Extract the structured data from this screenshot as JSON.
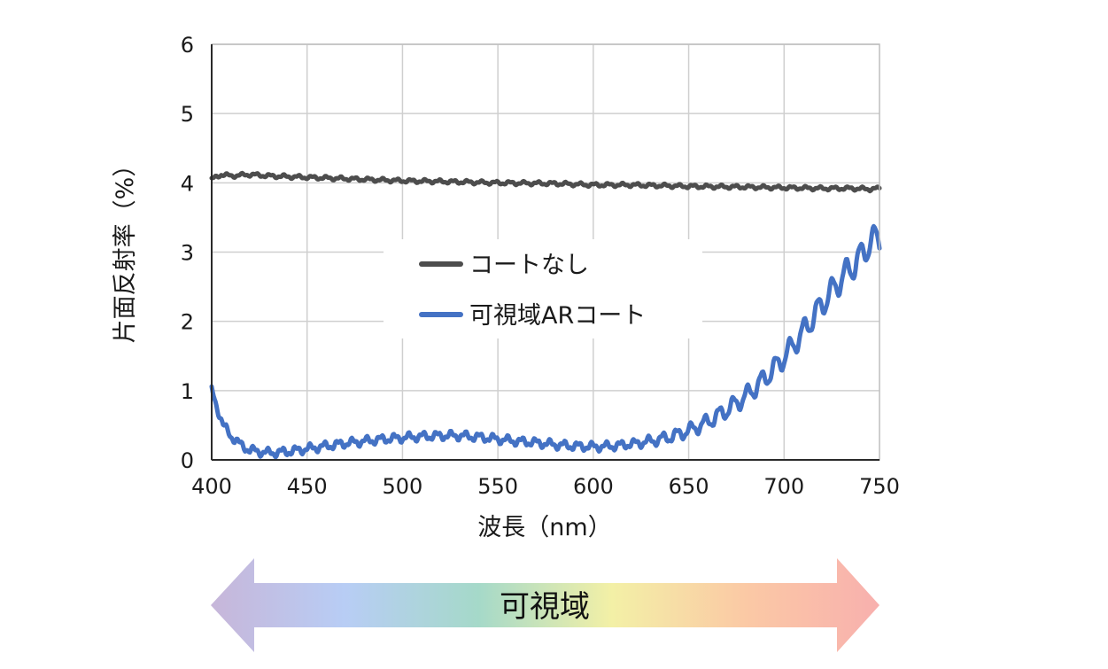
{
  "chart_data": {
    "type": "line",
    "title": "",
    "xlabel": "波長（nm）",
    "ylabel": "片面反射率（%）",
    "xlim": [
      400,
      750
    ],
    "ylim": [
      0,
      6
    ],
    "x_ticks": [
      "400",
      "450",
      "500",
      "550",
      "600",
      "650",
      "700",
      "750"
    ],
    "y_ticks": [
      "0",
      "1",
      "2",
      "3",
      "4",
      "5",
      "6"
    ],
    "grid": true,
    "legend_position": "center",
    "series": [
      {
        "name": "コートなし",
        "color": "#4d4d4d",
        "x": [
          400,
          405,
          410,
          420,
          430,
          450,
          470,
          500,
          520,
          550,
          580,
          600,
          620,
          650,
          680,
          700,
          720,
          735,
          745,
          750
        ],
        "y": [
          4.05,
          4.12,
          4.1,
          4.12,
          4.1,
          4.08,
          4.06,
          4.03,
          4.02,
          4.0,
          3.99,
          3.97,
          3.97,
          3.95,
          3.94,
          3.93,
          3.92,
          3.92,
          3.91,
          3.92
        ],
        "ripple": 0.025
      },
      {
        "name": "可視域ARコート",
        "color": "#4472c4",
        "x": [
          400,
          403,
          406,
          410,
          415,
          420,
          425,
          430,
          440,
          450,
          460,
          470,
          480,
          490,
          500,
          510,
          520,
          530,
          540,
          550,
          560,
          570,
          580,
          590,
          600,
          610,
          620,
          630,
          640,
          650,
          660,
          670,
          680,
          690,
          700,
          710,
          720,
          730,
          740,
          745,
          750
        ],
        "y": [
          1.0,
          0.75,
          0.5,
          0.35,
          0.22,
          0.14,
          0.12,
          0.1,
          0.12,
          0.16,
          0.2,
          0.24,
          0.27,
          0.3,
          0.32,
          0.34,
          0.35,
          0.35,
          0.33,
          0.3,
          0.27,
          0.25,
          0.22,
          0.2,
          0.19,
          0.2,
          0.23,
          0.27,
          0.33,
          0.42,
          0.55,
          0.72,
          0.92,
          1.18,
          1.48,
          1.85,
          2.25,
          2.62,
          2.92,
          3.15,
          3.2
        ],
        "ripple": 0.06
      }
    ]
  },
  "visible_band": {
    "label": "可視域",
    "colors": [
      "#c7b6d9",
      "#b8cdf5",
      "#a5d9c9",
      "#f3f0a6",
      "#fbc9a5",
      "#f8b0ae"
    ]
  }
}
